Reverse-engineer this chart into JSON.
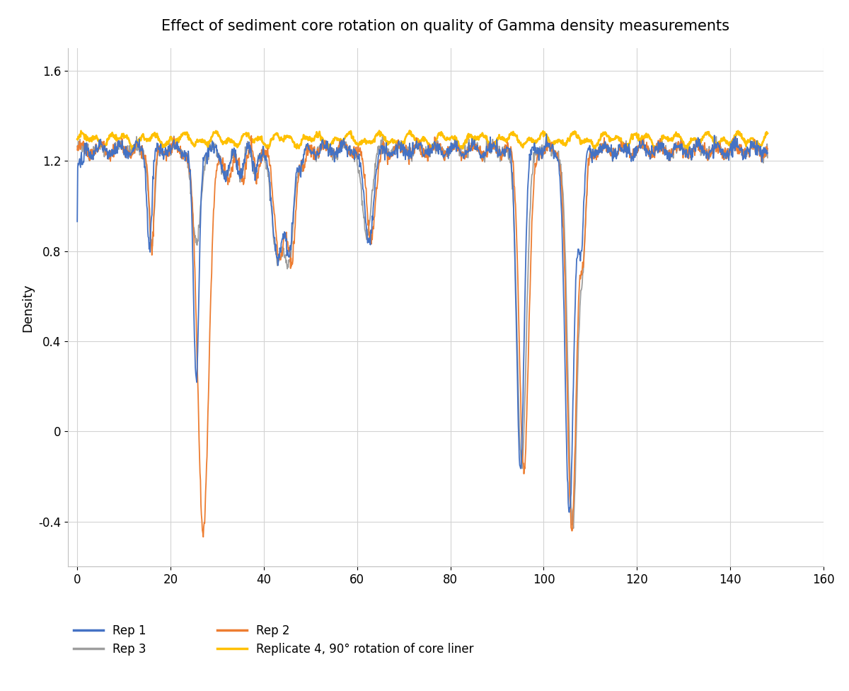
{
  "title": "Effect of sediment core rotation on quality of Gamma density measurements",
  "ylabel": "Density",
  "xlim": [
    -2,
    160
  ],
  "ylim": [
    -0.6,
    1.7
  ],
  "yticks": [
    -0.4,
    0,
    0.4,
    0.8,
    1.2,
    1.6
  ],
  "xticks": [
    0,
    20,
    40,
    60,
    80,
    100,
    120,
    140,
    160
  ],
  "colors": {
    "rep1": "#4472c4",
    "rep2": "#ed7d31",
    "rep3": "#9e9e9e",
    "rep4": "#ffc000"
  },
  "legend_labels": [
    "Rep 1",
    "Rep 2",
    "Rep 3",
    "Replicate 4, 90° rotation of core liner"
  ],
  "background_color": "#ffffff",
  "title_fontsize": 15,
  "axis_fontsize": 12,
  "legend_fontsize": 12
}
